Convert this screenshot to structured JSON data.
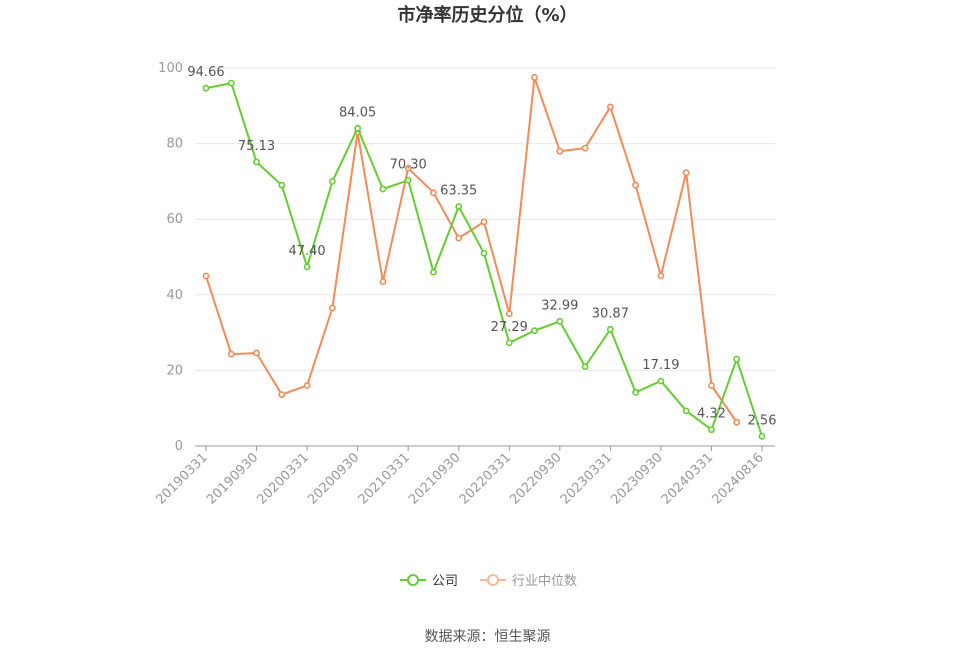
{
  "chart_data": {
    "type": "line",
    "title": "市净率历史分位（%）",
    "ylim": [
      0,
      100
    ],
    "yticks": [
      0,
      20,
      40,
      60,
      80,
      100
    ],
    "x_tick_labels": [
      "20190331",
      "20190930",
      "20200331",
      "20200930",
      "20210331",
      "20210930",
      "20220331",
      "20220930",
      "20230331",
      "20230930",
      "20240331",
      "20240816"
    ],
    "x_tick_index": [
      0,
      2,
      4,
      6,
      8,
      10,
      12,
      14,
      16,
      18,
      20,
      22
    ],
    "grid": true,
    "legend_position": "bottom",
    "series": [
      {
        "name": "公司",
        "color": "#66cc33",
        "values": [
          94.66,
          96.0,
          75.13,
          69.0,
          47.4,
          70.0,
          84.05,
          68.0,
          70.3,
          46.0,
          63.35,
          51.0,
          27.29,
          30.5,
          32.99,
          21.0,
          30.87,
          14.2,
          17.19,
          9.3,
          4.32,
          23.0,
          2.56
        ],
        "labels": {
          "0": "94.66",
          "2": "75.13",
          "4": "47.40",
          "6": "84.05",
          "8": "70.30",
          "10": "63.35",
          "12": "27.29",
          "14": "32.99",
          "16": "30.87",
          "18": "17.19",
          "20": "4.32",
          "22": "2.56"
        }
      },
      {
        "name": "行业中位数",
        "color": "#f08c5a",
        "values": [
          45.0,
          24.3,
          24.6,
          13.6,
          16.0,
          36.5,
          83.0,
          43.5,
          73.5,
          67.0,
          55.0,
          59.3,
          35.0,
          97.5,
          78.0,
          78.8,
          89.7,
          69.0,
          45.0,
          72.3,
          16.0,
          6.3,
          null
        ]
      }
    ]
  },
  "footer": {
    "source": "数据来源：恒生聚源"
  }
}
